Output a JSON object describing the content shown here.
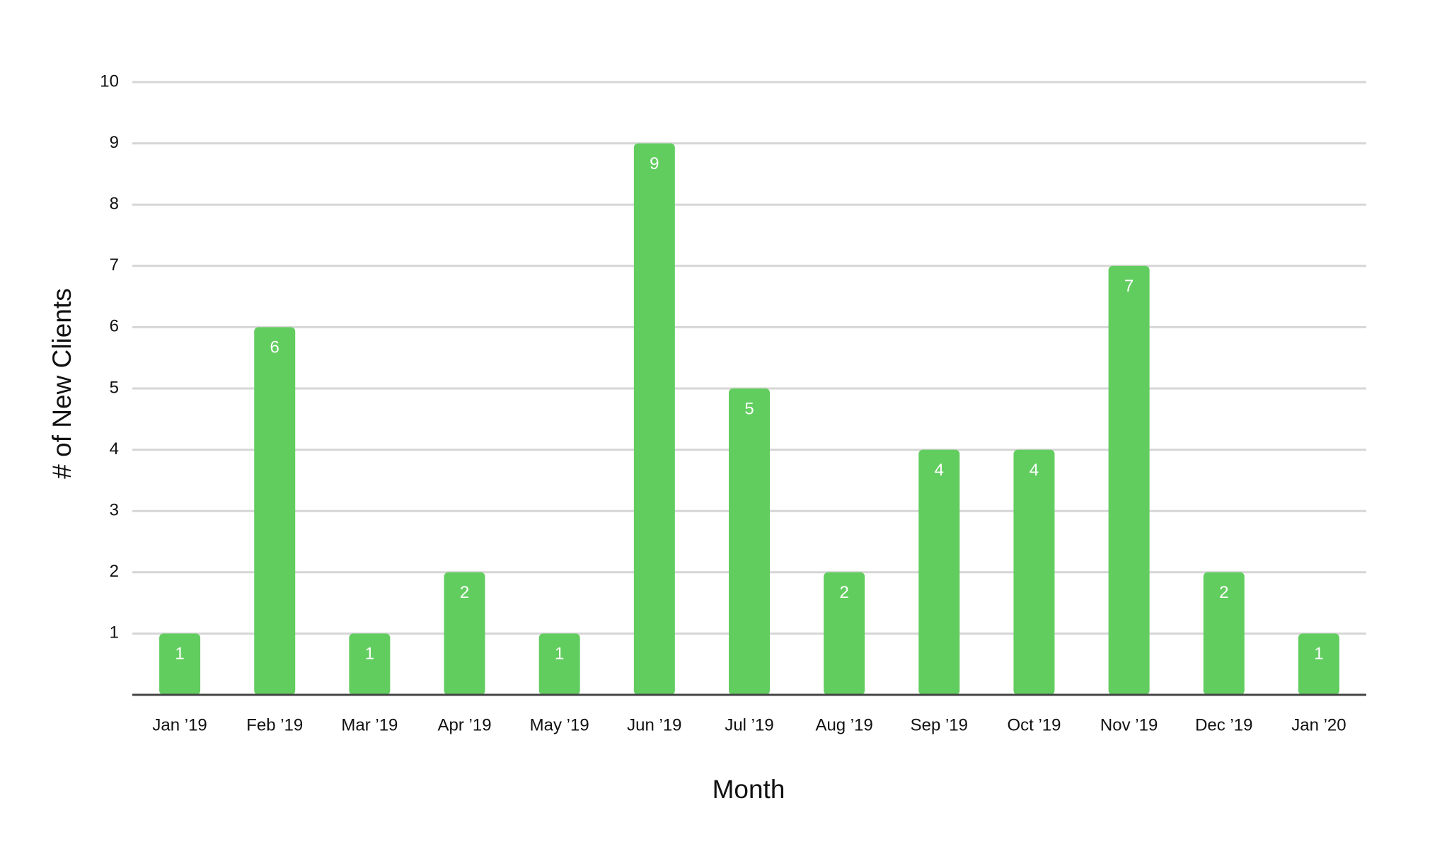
{
  "chart_data": {
    "type": "bar",
    "x_label": "Month",
    "y_label": "# of New Clients",
    "categories": [
      "Jan ’19",
      "Feb ’19",
      "Mar ’19",
      "Apr ’19",
      "May ’19",
      "Jun ’19",
      "Jul ’19",
      "Aug ’19",
      "Sep ’19",
      "Oct ’19",
      "Nov ’19",
      "Dec ’19",
      "Jan ’20"
    ],
    "values": [
      1,
      6,
      1,
      2,
      1,
      9,
      5,
      2,
      4,
      4,
      7,
      2,
      1
    ],
    "color": "#62cd5f",
    "ylim": [
      0,
      10
    ],
    "yticks": [
      1,
      2,
      3,
      4,
      5,
      6,
      7,
      8,
      9,
      10
    ],
    "grid": true
  }
}
